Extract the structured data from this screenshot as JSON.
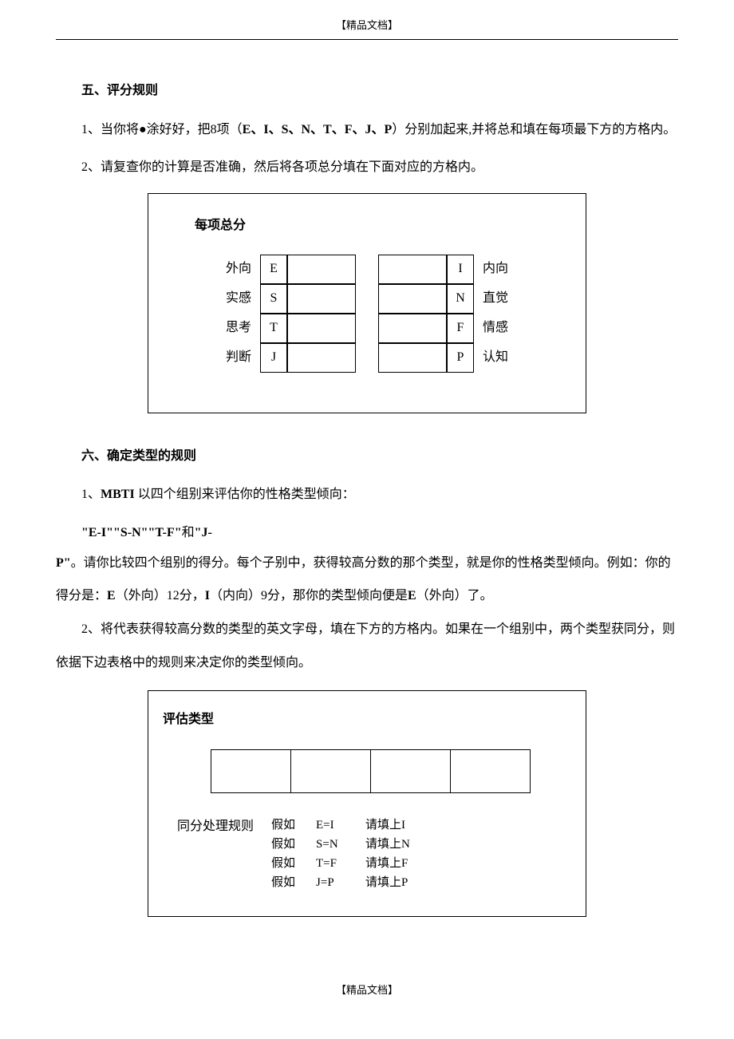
{
  "header": "【精品文档】",
  "footer": "【精品文档】",
  "section5": {
    "title": "五、评分规则",
    "p1_pre": "1、当你将●涂好好，把8项（",
    "p1_bold": "E、I、S、N、T、F、J、P",
    "p1_post": "）分别加起来,并将总和填在每项最下方的方格内。",
    "p2": "2、请复查你的计算是否准确，然后将各项总分填在下面对应的方格内。"
  },
  "scoreBox": {
    "title": "每项总分",
    "rows": [
      {
        "leftLabel": "外向",
        "leftCode": "E",
        "rightCode": "I",
        "rightLabel": "内向"
      },
      {
        "leftLabel": "实感",
        "leftCode": "S",
        "rightCode": "N",
        "rightLabel": "直觉"
      },
      {
        "leftLabel": "思考",
        "leftCode": "T",
        "rightCode": "F",
        "rightLabel": "情感"
      },
      {
        "leftLabel": "判断",
        "leftCode": "J",
        "rightCode": "P",
        "rightLabel": "认知"
      }
    ]
  },
  "section6": {
    "title": "六、确定类型的规则",
    "p1_pre": "1、",
    "p1_b1": "MBTI ",
    "p1_mid": "以四个组别来评估你的性格类型倾向：",
    "p2_b": "\"E-I\"\"S-N\"\"T-F\"",
    "p2_m": "和",
    "p2_b2": "\"J-",
    "p3_b1": "P\"",
    "p3_t1": "。请你比较四个组别的得分。每个子别中，获得较高分数的那个类型，就是你的性格类型倾向。例如：你的得分是：",
    "p3_b2": "E",
    "p3_t2": "（外向）12分，",
    "p3_b3": "I",
    "p3_t3": "（内向）9分，那你的类型倾向便是",
    "p3_b4": "E",
    "p3_t4": "（外向）了。",
    "p4": "2、将代表获得较高分数的类型的英文字母，填在下方的方格内。如果在一个组别中，两个类型获同分，则依据下边表格中的规则来决定你的类型倾向。"
  },
  "evalBox": {
    "title": "评估类型",
    "tieLabel": "同分处理规则",
    "rules": [
      {
        "c1": "假如",
        "c2": "E=I",
        "c3": "请填上I"
      },
      {
        "c1": "假如",
        "c2": "S=N",
        "c3": "请填上N"
      },
      {
        "c1": "假如",
        "c2": "T=F",
        "c3": "请填上F"
      },
      {
        "c1": "假如",
        "c2": "J=P",
        "c3": "请填上P"
      }
    ]
  }
}
